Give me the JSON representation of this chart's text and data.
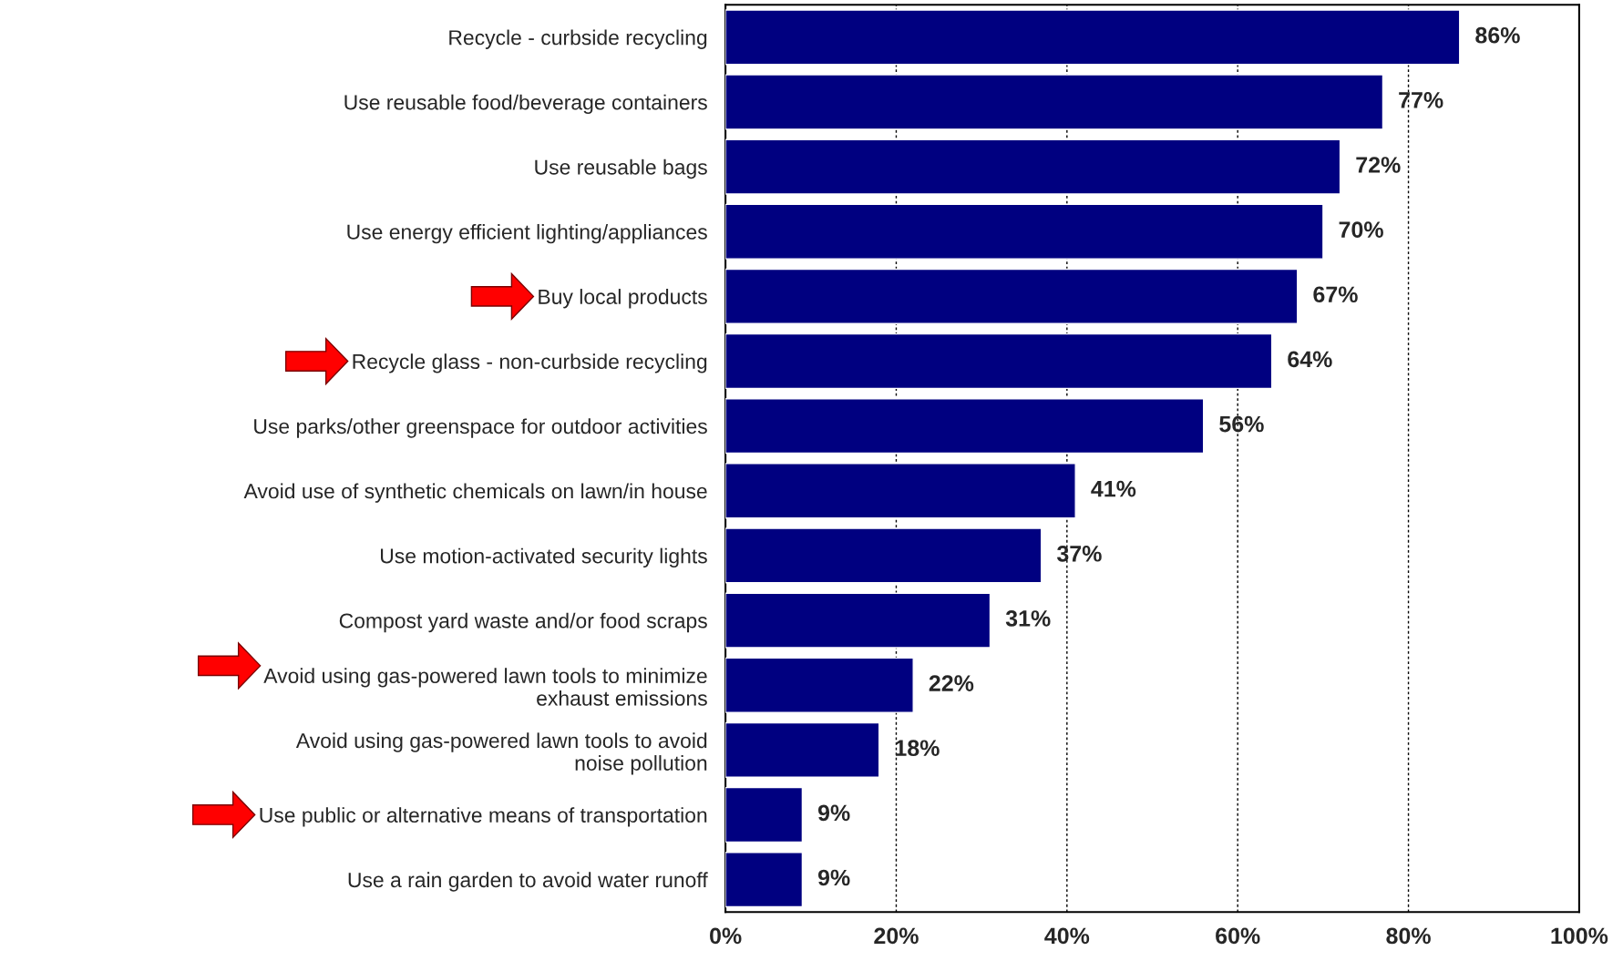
{
  "chart_data": {
    "type": "bar",
    "orientation": "horizontal",
    "categories": [
      "Recycle - curbside recycling",
      "Use reusable food/beverage containers",
      "Use reusable bags",
      "Use energy efficient lighting/appliances",
      "Buy local products",
      "Recycle glass - non-curbside recycling",
      "Use parks/other greenspace for outdoor activities",
      "Avoid use of synthetic chemicals on lawn/in house",
      "Use motion-activated security lights",
      "Compost yard waste and/or food scraps",
      "Avoid using gas-powered lawn tools to minimize\nexhaust emissions",
      "Avoid using gas-powered lawn tools to avoid\nnoise pollution",
      "Use public or alternative means of transportation",
      "Use a rain garden to avoid water runoff"
    ],
    "values": [
      86,
      77,
      72,
      70,
      67,
      64,
      56,
      41,
      37,
      31,
      22,
      18,
      9,
      9
    ],
    "value_labels": [
      "86%",
      "77%",
      "72%",
      "70%",
      "67%",
      "64%",
      "56%",
      "41%",
      "37%",
      "31%",
      "22%",
      "18%",
      "9%",
      "9%"
    ],
    "color": "#000080",
    "xlim": [
      0,
      100
    ],
    "xticks": [
      {
        "value": 0,
        "label": "0%"
      },
      {
        "value": 20,
        "label": "20%"
      },
      {
        "value": 40,
        "label": "40%"
      },
      {
        "value": 60,
        "label": "60%"
      },
      {
        "value": 80,
        "label": "80%"
      },
      {
        "value": 100,
        "label": "100%"
      }
    ],
    "grid": "x",
    "legend": false
  }
}
